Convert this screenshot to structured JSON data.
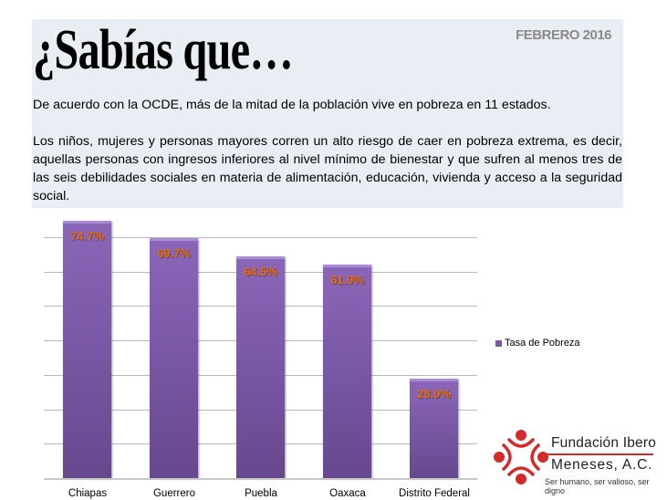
{
  "header": {
    "title": "¿Sabías que…",
    "date": "FEBRERO 2016",
    "paragraph_1": "De acuerdo con la OCDE, más de la mitad de la población vive en pobreza en 11 estados.",
    "paragraph_2": "Los niños, mujeres y personas mayores corren un alto riesgo de caer en pobreza extrema, es decir, aquellas personas con ingresos inferiores al nivel mínimo de bienestar y que sufren al menos tres de las seis debilidades sociales en materia de alimentación, educación, vivienda y acceso a la seguridad social."
  },
  "chart_data": {
    "type": "bar",
    "title": "",
    "categories": [
      "Chiapas",
      "Guerrero",
      "Puebla",
      "Oaxaca",
      "Distrito Federal"
    ],
    "series": [
      {
        "name": "Tasa de Pobreza",
        "values": [
          74.7,
          69.7,
          64.5,
          61.9,
          28.9
        ],
        "color": "#7b5aa8"
      }
    ],
    "data_labels": [
      "74.7%",
      "69.7%",
      "64.5%",
      "61.9%",
      "28.9%"
    ],
    "data_label_color": "#e46c0a",
    "xlabel": "",
    "ylabel": "",
    "ylim": [
      0,
      80
    ],
    "y_ticks_hidden": true,
    "grid": true,
    "legend_position": "right"
  },
  "legend": {
    "label": "Tasa de Pobreza"
  },
  "logo": {
    "org_line_1": "Fundación Ibero",
    "org_line_2": "Meneses, A.C.",
    "tagline": "Ser humano, ser valioso, ser digno",
    "color": "#d42a2a"
  }
}
